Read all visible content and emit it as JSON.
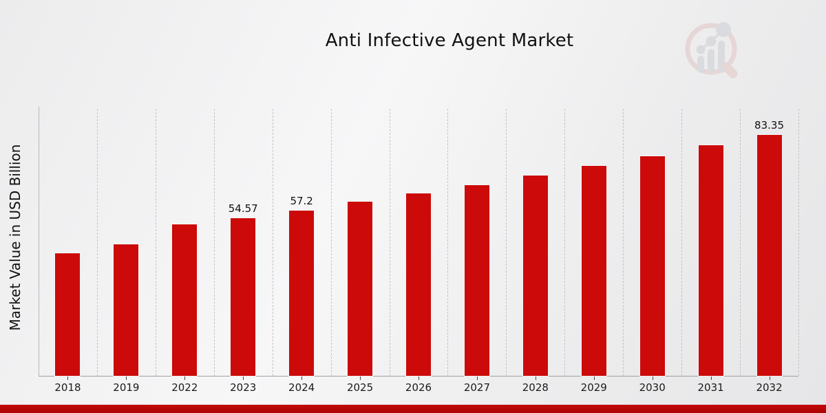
{
  "title": "Anti Infective Agent Market",
  "y_axis_label": "Market Value in USD Billion",
  "logo": {
    "name": "magnifier-bar-chart-logo"
  },
  "footer": {
    "ribbon_color": "#b80808"
  },
  "chart_data": {
    "type": "bar",
    "title": "Anti Infective Agent Market",
    "xlabel": "",
    "ylabel": "Market Value in USD Billion",
    "categories": [
      "2018",
      "2019",
      "2022",
      "2023",
      "2024",
      "2025",
      "2026",
      "2027",
      "2028",
      "2029",
      "2030",
      "2031",
      "2032"
    ],
    "values": [
      42.3,
      45.4,
      52.3,
      54.57,
      57.2,
      60.2,
      63.0,
      66.0,
      69.3,
      72.5,
      75.9,
      79.6,
      83.35
    ],
    "bar_labels": [
      "",
      "",
      "",
      "54.57",
      "57.2",
      "",
      "",
      "",
      "",
      "",
      "",
      "",
      "83.35"
    ],
    "ylim": [
      0,
      93
    ],
    "bar_color": "#cc0a0a",
    "grid": "vertical-dashed-column-separators",
    "legend": "none",
    "unit": "USD Billion"
  }
}
